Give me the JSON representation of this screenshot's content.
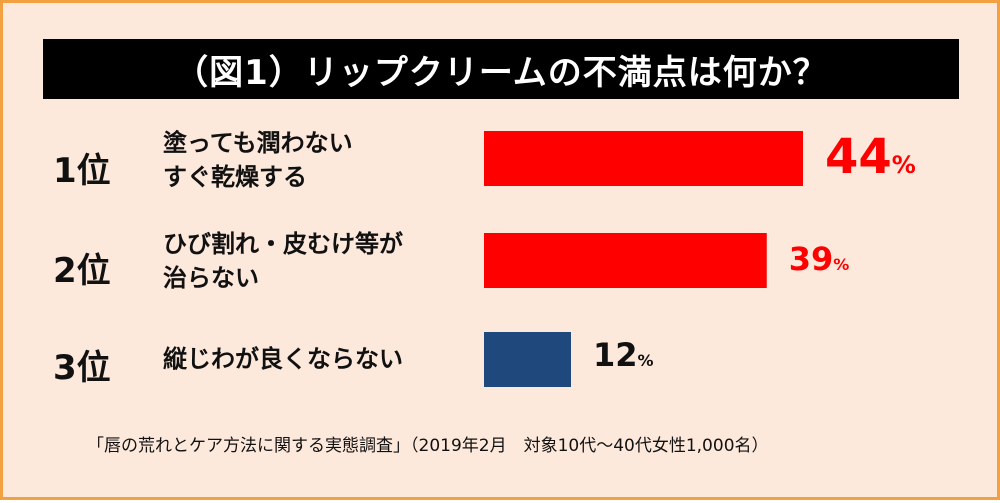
{
  "title": "（図1）リップクリームの不満点は何か？",
  "footnote": "「唇の荒れとケア方法に関する実態調査」（2019年2月　対象10代〜40代女性1,000名）",
  "chart_data": {
    "type": "bar",
    "orientation": "horizontal",
    "title": "（図1）リップクリームの不満点は何か？",
    "unit": "%",
    "xlim": [
      0,
      100
    ],
    "grid": false,
    "ranks": [
      "1位",
      "2位",
      "3位"
    ],
    "categories": [
      "塗っても潤わない\nすぐ乾燥する",
      "ひび割れ・皮むけ等が\n治らない",
      "縦じわが良くならない"
    ],
    "values": [
      44,
      39,
      12
    ],
    "colors": [
      "#ff0000",
      "#ff0000",
      "#1f497d"
    ],
    "value_label_colors": [
      "#ff0000",
      "#ff0000",
      "#111111"
    ]
  }
}
